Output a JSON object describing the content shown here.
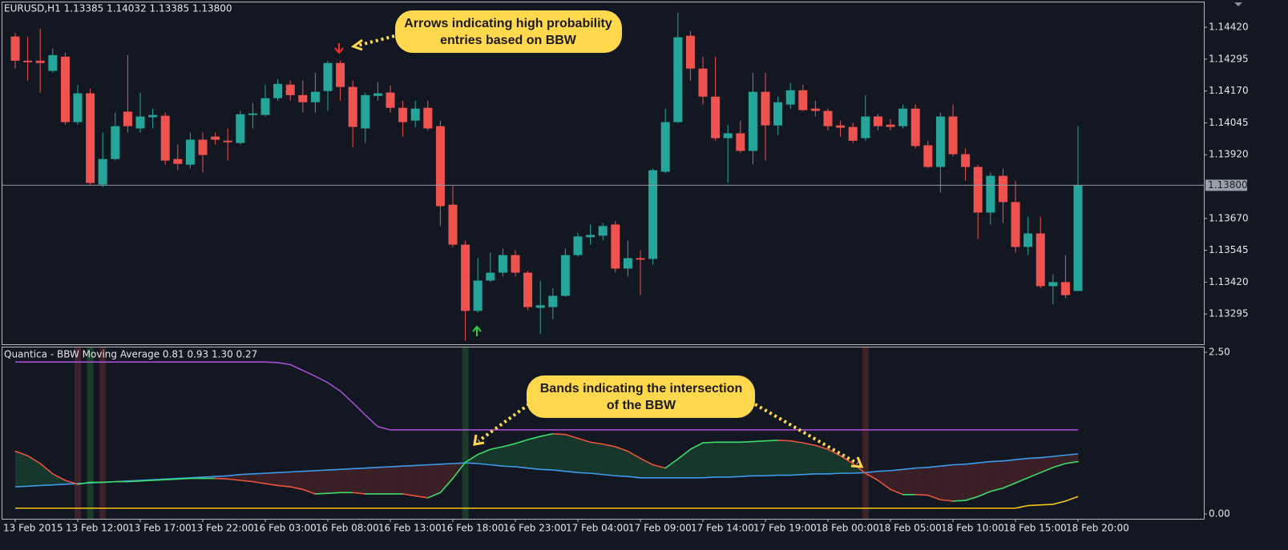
{
  "chart_data": [
    {
      "type": "candlestick",
      "title": "EURUSD,H1  1.13385 1.14032 1.13385 1.13800",
      "categories": [
        "13 Feb 2015",
        null,
        null,
        null,
        null,
        "13 Feb 12:00",
        null,
        null,
        null,
        null,
        "13 Feb 17:00",
        null,
        null,
        null,
        null,
        "13 Feb 22:00",
        null,
        null,
        null,
        null,
        "16 Feb 03:00",
        null,
        null,
        null,
        null,
        "16 Feb 08:00",
        null,
        null,
        null,
        null,
        "16 Feb 13:00",
        null,
        null,
        null,
        null,
        "16 Feb 18:00",
        null,
        null,
        null,
        null,
        "16 Feb 23:00",
        null,
        null,
        null,
        null,
        "17 Feb 04:00",
        null,
        null,
        null,
        null,
        "17 Feb 09:00",
        null,
        null,
        null,
        null,
        "17 Feb 14:00",
        null,
        null,
        null,
        null,
        "17 Feb 19:00",
        null,
        null,
        null,
        null,
        "18 Feb 00:00",
        null,
        null,
        null,
        null,
        "18 Feb 05:00",
        null,
        null,
        null,
        null,
        "18 Feb 10:00",
        null,
        null,
        null,
        null,
        "18 Feb 15:00",
        null,
        null,
        null,
        null,
        "18 Feb 20:00"
      ],
      "open": [
        1.14384,
        1.14289,
        1.14289,
        1.14249,
        1.14305,
        1.14048,
        1.14161,
        1.13803,
        1.13903,
        1.14089,
        1.14023,
        1.14067,
        1.14073,
        1.13903,
        1.13881,
        1.13979,
        1.13991,
        1.13975,
        1.13966,
        1.14076,
        1.14076,
        1.14142,
        1.14195,
        1.14154,
        1.14126,
        1.1417,
        1.1428,
        1.14186,
        1.14023,
        1.14151,
        1.14164,
        1.14104,
        1.14054,
        1.14104,
        1.14032,
        1.13724,
        1.13567,
        1.13307,
        1.13426,
        1.13457,
        1.13526,
        1.13457,
        1.13319,
        1.13322,
        1.13366,
        1.13526,
        1.13596,
        1.13602,
        1.13646,
        1.13473,
        1.13514,
        1.13511,
        1.13853,
        1.14048,
        1.14387,
        1.14258,
        1.14148,
        1.13985,
        1.14004,
        1.13935,
        1.14167,
        1.14035,
        1.14117,
        1.14173,
        1.14101,
        1.14092,
        1.14035,
        1.14029,
        1.13985,
        1.1407,
        1.14038,
        1.14032,
        1.14101,
        1.13957,
        1.13872,
        1.1407,
        1.13922,
        1.13872,
        1.13693,
        1.13837,
        1.13734,
        1.13558,
        1.13611,
        1.13404,
        1.1342,
        1.13385
      ],
      "high": [
        1.14399,
        1.14384,
        1.14415,
        1.14337,
        1.14321,
        1.14195,
        1.1418,
        1.14007,
        1.14085,
        1.14311,
        1.14164,
        1.14101,
        1.14085,
        1.1396,
        1.14007,
        1.14007,
        1.14007,
        1.14023,
        1.14092,
        1.14123,
        1.14195,
        1.14217,
        1.14211,
        1.14211,
        1.14242,
        1.14289,
        1.14289,
        1.14211,
        1.14164,
        1.14205,
        1.14192,
        1.14132,
        1.14132,
        1.14132,
        1.14054,
        1.13797,
        1.13583,
        1.13514,
        1.13536,
        1.13552,
        1.13545,
        1.13464,
        1.13426,
        1.13395,
        1.13552,
        1.13614,
        1.13646,
        1.13652,
        1.13661,
        1.13583,
        1.13545,
        1.13866,
        1.14101,
        1.14478,
        1.14406,
        1.14305,
        1.14305,
        1.14038,
        1.14054,
        1.14242,
        1.14242,
        1.14148,
        1.14202,
        1.14195,
        1.14132,
        1.14101,
        1.14054,
        1.14045,
        1.14154,
        1.14079,
        1.1406,
        1.14117,
        1.14117,
        1.13975,
        1.14085,
        1.14117,
        1.13944,
        1.13881,
        1.1385,
        1.13866,
        1.13818,
        1.13677,
        1.13677,
        1.13451,
        1.13526,
        1.14032
      ],
      "low": [
        1.14258,
        1.14211,
        1.14164,
        1.14242,
        1.14038,
        1.14038,
        1.13803,
        1.13793,
        1.13897,
        1.14007,
        1.14007,
        1.14023,
        1.13881,
        1.13859,
        1.13866,
        1.1385,
        1.1396,
        1.13897,
        1.1396,
        1.14023,
        1.1407,
        1.14132,
        1.14132,
        1.14085,
        1.14085,
        1.14092,
        1.14132,
        1.1395,
        1.13966,
        1.14132,
        1.14085,
        1.13991,
        1.14029,
        1.14016,
        1.1364,
        1.13558,
        1.1319,
        1.133,
        1.1342,
        1.13442,
        1.13442,
        1.1331,
        1.13216,
        1.13275,
        1.13363,
        1.1352,
        1.13567,
        1.13583,
        1.13457,
        1.13442,
        1.13369,
        1.13489,
        1.13847,
        1.14045,
        1.14211,
        1.14117,
        1.13975,
        1.13809,
        1.13928,
        1.13881,
        1.13897,
        1.13997,
        1.14101,
        1.14092,
        1.1407,
        1.14016,
        1.13991,
        1.13966,
        1.13975,
        1.14016,
        1.14016,
        1.14023,
        1.13944,
        1.13866,
        1.13771,
        1.13913,
        1.13818,
        1.13589,
        1.13646,
        1.13652,
        1.13536,
        1.13526,
        1.13395,
        1.13332,
        1.13357,
        1.13385
      ],
      "close": [
        1.14289,
        1.14283,
        1.1428,
        1.14311,
        1.14048,
        1.14161,
        1.13809,
        1.13903,
        1.14032,
        1.14032,
        1.1407,
        1.14076,
        1.13897,
        1.13884,
        1.13979,
        1.13919,
        1.13979,
        1.13969,
        1.14079,
        1.14082,
        1.14142,
        1.14198,
        1.14154,
        1.14126,
        1.14167,
        1.1428,
        1.14186,
        1.14029,
        1.14154,
        1.14161,
        1.14104,
        1.14048,
        1.14101,
        1.14023,
        1.13718,
        1.13567,
        1.13307,
        1.13426,
        1.13457,
        1.13526,
        1.13457,
        1.13322,
        1.13329,
        1.13366,
        1.13526,
        1.13599,
        1.13605,
        1.1364,
        1.13473,
        1.13514,
        1.13508,
        1.13859,
        1.14048,
        1.14381,
        1.14258,
        1.14148,
        1.13985,
        1.14004,
        1.13935,
        1.14167,
        1.14035,
        1.14126,
        1.14173,
        1.14095,
        1.14092,
        1.14032,
        1.14026,
        1.13975,
        1.1407,
        1.14032,
        1.14029,
        1.14101,
        1.13954,
        1.13872,
        1.1407,
        1.13922,
        1.13872,
        1.13693,
        1.13837,
        1.13734,
        1.13558,
        1.13611,
        1.13404,
        1.1342,
        1.13369,
        1.138
      ],
      "up_color": "#26a69a",
      "down_color": "#ef5350",
      "ylim": [
        1.13176,
        1.14521
      ],
      "yticks": [
        {
          "value": 1.1442,
          "label": "1.14420"
        },
        {
          "value": 1.14295,
          "label": "1.14295"
        },
        {
          "value": 1.1417,
          "label": "1.14170"
        },
        {
          "value": 1.14045,
          "label": "1.14045"
        },
        {
          "value": 1.1392,
          "label": "1.13920"
        },
        {
          "value": 1.1367,
          "label": "1.13670"
        },
        {
          "value": 1.13545,
          "label": "1.13545"
        },
        {
          "value": 1.1342,
          "label": "1.13420"
        },
        {
          "value": 1.13295,
          "label": "1.13295"
        }
      ],
      "current_price": {
        "value": 1.138,
        "label": "1.13800"
      },
      "annotation": [
        "Arrows indicating high probability",
        "entries based on BBW"
      ]
    },
    {
      "type": "line",
      "title": "Quantica - BBW Moving Average 0.81 0.93 1.30 0.27",
      "ylim": [
        -0.074,
        2.587
      ],
      "yticks": [
        {
          "value": 2.5,
          "label": "2.50"
        },
        {
          "value": 0,
          "label": "0.00"
        }
      ],
      "bbw": {
        "up_color": "#3ddc6a",
        "down_color": "#e8553e",
        "values": [
          0.97,
          0.9,
          0.78,
          0.62,
          0.52,
          0.46,
          0.49,
          0.49,
          0.5,
          0.5,
          0.51,
          0.52,
          0.53,
          0.54,
          0.55,
          0.55,
          0.55,
          0.54,
          0.52,
          0.5,
          0.47,
          0.44,
          0.42,
          0.38,
          0.31,
          0.32,
          0.33,
          0.33,
          0.31,
          0.31,
          0.31,
          0.31,
          0.28,
          0.25,
          0.33,
          0.55,
          0.8,
          0.92,
          1.0,
          1.04,
          1.09,
          1.15,
          1.2,
          1.24,
          1.23,
          1.17,
          1.11,
          1.08,
          1.04,
          0.97,
          0.86,
          0.76,
          0.71,
          0.85,
          1.0,
          1.1,
          1.11,
          1.11,
          1.11,
          1.12,
          1.13,
          1.14,
          1.13,
          1.1,
          1.06,
          1.0,
          0.9,
          0.78,
          0.63,
          0.52,
          0.38,
          0.3,
          0.3,
          0.29,
          0.22,
          0.2,
          0.21,
          0.27,
          0.35,
          0.4,
          0.48,
          0.56,
          0.64,
          0.72,
          0.78,
          0.81
        ]
      },
      "ma": {
        "color": "#3d9be9",
        "values": [
          0.42,
          0.43,
          0.44,
          0.45,
          0.46,
          0.47,
          0.48,
          0.49,
          0.5,
          0.51,
          0.52,
          0.53,
          0.54,
          0.55,
          0.56,
          0.57,
          0.58,
          0.59,
          0.61,
          0.62,
          0.63,
          0.64,
          0.65,
          0.66,
          0.67,
          0.68,
          0.69,
          0.7,
          0.71,
          0.72,
          0.73,
          0.74,
          0.75,
          0.76,
          0.77,
          0.78,
          0.79,
          0.78,
          0.76,
          0.74,
          0.73,
          0.71,
          0.69,
          0.68,
          0.66,
          0.64,
          0.63,
          0.61,
          0.59,
          0.58,
          0.56,
          0.56,
          0.56,
          0.56,
          0.56,
          0.56,
          0.57,
          0.57,
          0.58,
          0.59,
          0.59,
          0.6,
          0.6,
          0.61,
          0.62,
          0.62,
          0.63,
          0.63,
          0.64,
          0.66,
          0.67,
          0.69,
          0.71,
          0.72,
          0.74,
          0.76,
          0.77,
          0.79,
          0.81,
          0.82,
          0.84,
          0.86,
          0.87,
          0.89,
          0.91,
          0.93
        ]
      },
      "lines": [
        {
          "color": "#a24fd0",
          "values": [
            2.35,
            2.35,
            2.35,
            2.35,
            2.35,
            2.35,
            2.35,
            2.35,
            2.35,
            2.35,
            2.35,
            2.35,
            2.35,
            2.35,
            2.35,
            2.35,
            2.35,
            2.35,
            2.35,
            2.35,
            2.35,
            2.34,
            2.31,
            2.22,
            2.13,
            2.03,
            1.9,
            1.72,
            1.53,
            1.35,
            1.3,
            1.3,
            1.3,
            1.3,
            1.3,
            1.3,
            1.3,
            1.3,
            1.3,
            1.3,
            1.3,
            1.3,
            1.3,
            1.3,
            1.3,
            1.3,
            1.3,
            1.3,
            1.3,
            1.3,
            1.3,
            1.3,
            1.3,
            1.3,
            1.3,
            1.3,
            1.3,
            1.3,
            1.3,
            1.3,
            1.3,
            1.3,
            1.3,
            1.3,
            1.3,
            1.3,
            1.3,
            1.3,
            1.3,
            1.3,
            1.3,
            1.3,
            1.3,
            1.3,
            1.3,
            1.3,
            1.3,
            1.3,
            1.3,
            1.3,
            1.3,
            1.3,
            1.3,
            1.3,
            1.3,
            1.3
          ]
        },
        {
          "color": "#f5c518",
          "values": [
            0.09,
            0.09,
            0.09,
            0.09,
            0.09,
            0.09,
            0.09,
            0.09,
            0.09,
            0.09,
            0.09,
            0.09,
            0.09,
            0.09,
            0.09,
            0.09,
            0.09,
            0.09,
            0.09,
            0.09,
            0.09,
            0.09,
            0.09,
            0.09,
            0.09,
            0.09,
            0.09,
            0.09,
            0.09,
            0.09,
            0.09,
            0.09,
            0.09,
            0.09,
            0.09,
            0.09,
            0.09,
            0.09,
            0.09,
            0.09,
            0.09,
            0.09,
            0.09,
            0.09,
            0.09,
            0.09,
            0.09,
            0.09,
            0.09,
            0.09,
            0.09,
            0.09,
            0.09,
            0.09,
            0.09,
            0.09,
            0.09,
            0.09,
            0.09,
            0.09,
            0.09,
            0.09,
            0.09,
            0.09,
            0.09,
            0.09,
            0.09,
            0.09,
            0.09,
            0.09,
            0.09,
            0.09,
            0.09,
            0.09,
            0.09,
            0.09,
            0.09,
            0.09,
            0.09,
            0.09,
            0.09,
            0.13,
            0.14,
            0.15,
            0.2,
            0.27
          ]
        }
      ],
      "above_fill": "#17362c",
      "below_fill": "#3a1f26",
      "band_up": "#1b3a2a",
      "band_down": "#3e2229",
      "annotation": [
        "Bands indicating the intersection",
        "of the BBW"
      ]
    }
  ]
}
